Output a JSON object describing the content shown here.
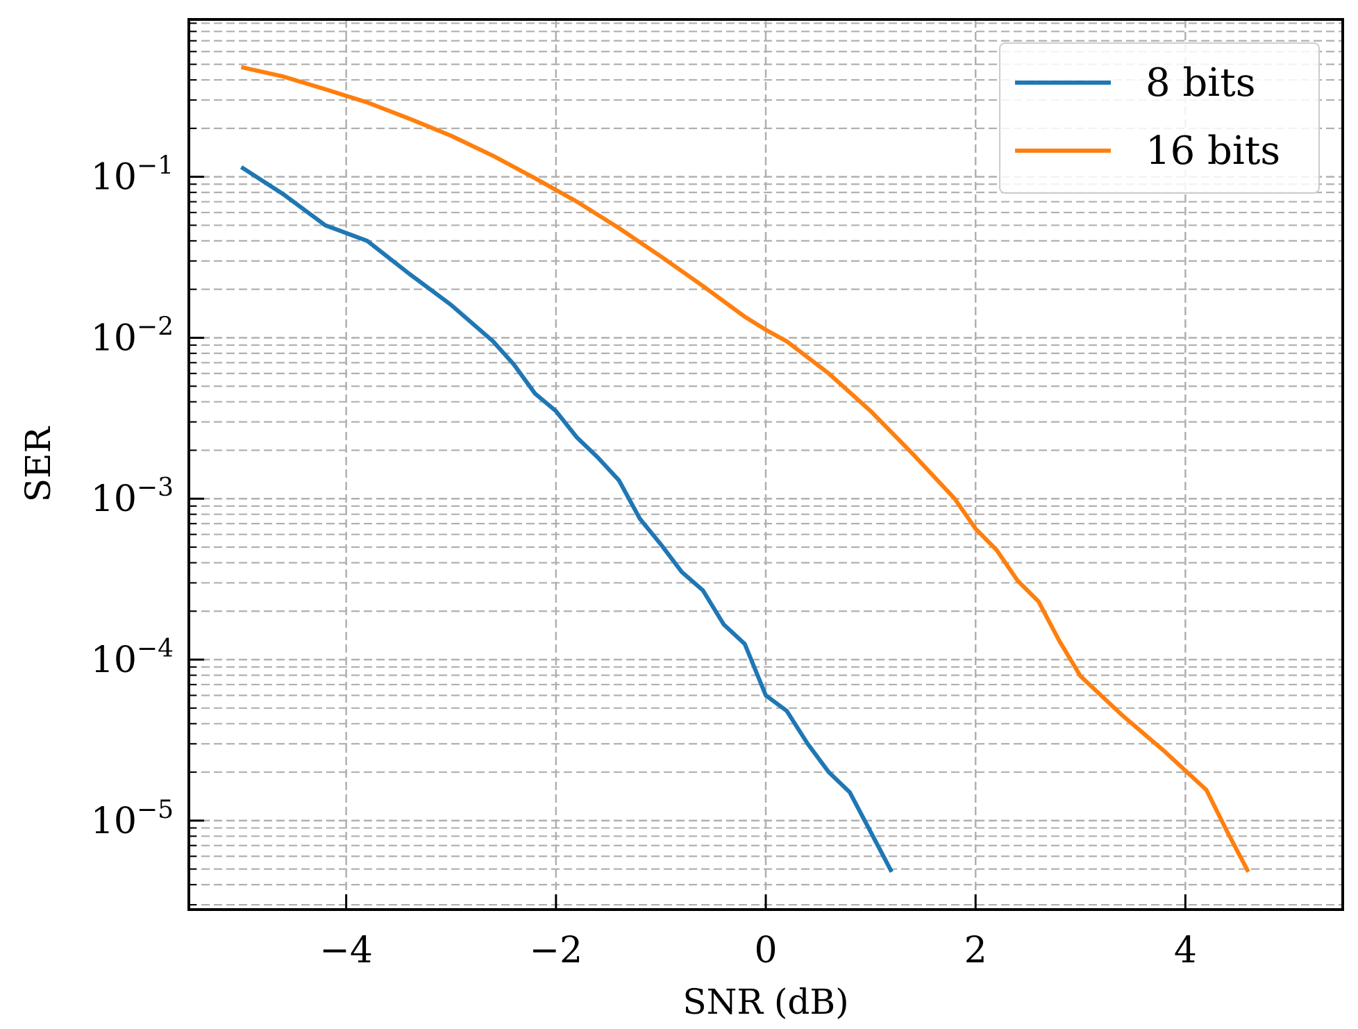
{
  "chart_data": {
    "type": "line",
    "title": "",
    "xlabel": "SNR (dB)",
    "ylabel": "SER",
    "xlim": [
      -5.5,
      5.5
    ],
    "ylim": [
      2.8e-06,
      0.95
    ],
    "yscale": "log",
    "grid": {
      "major": true,
      "minor": true,
      "style": "dashed"
    },
    "legend_position": "top-right",
    "x_ticks": [
      {
        "value": -4,
        "label": "−4"
      },
      {
        "value": -2,
        "label": "−2"
      },
      {
        "value": 0,
        "label": "0"
      },
      {
        "value": 2,
        "label": "2"
      },
      {
        "value": 4,
        "label": "4"
      }
    ],
    "y_ticks": [
      {
        "value": 0.1,
        "base": "10",
        "exp": "−1"
      },
      {
        "value": 0.01,
        "base": "10",
        "exp": "−2"
      },
      {
        "value": 0.001,
        "base": "10",
        "exp": "−3"
      },
      {
        "value": 0.0001,
        "base": "10",
        "exp": "−4"
      },
      {
        "value": 1e-05,
        "base": "10",
        "exp": "−5"
      }
    ],
    "series": [
      {
        "name": "8 bits",
        "color": "#1f77b4",
        "x": [
          -5.0,
          -4.6,
          -4.2,
          -3.8,
          -3.4,
          -3.0,
          -2.6,
          -2.4,
          -2.2,
          -2.0,
          -1.8,
          -1.6,
          -1.4,
          -1.2,
          -1.0,
          -0.8,
          -0.6,
          -0.4,
          -0.2,
          0.0,
          0.2,
          0.4,
          0.6,
          0.8,
          1.0,
          1.2
        ],
        "y": [
          0.115,
          0.078,
          0.05,
          0.04,
          0.025,
          0.016,
          0.0095,
          0.0068,
          0.0045,
          0.0035,
          0.0024,
          0.0018,
          0.0013,
          0.00075,
          0.00052,
          0.00035,
          0.00027,
          0.000165,
          0.000125,
          6e-05,
          4.8e-05,
          3e-05,
          2e-05,
          1.5e-05,
          8.5e-06,
          4.8e-06
        ]
      },
      {
        "name": "16 bits",
        "color": "#ff7f0e",
        "x": [
          -5.0,
          -4.6,
          -4.2,
          -3.8,
          -3.4,
          -3.0,
          -2.6,
          -2.2,
          -1.8,
          -1.4,
          -1.0,
          -0.6,
          -0.2,
          0.0,
          0.2,
          0.6,
          1.0,
          1.4,
          1.8,
          2.0,
          2.2,
          2.4,
          2.6,
          2.8,
          3.0,
          3.4,
          3.8,
          4.2,
          4.4,
          4.6
        ],
        "y": [
          0.48,
          0.42,
          0.35,
          0.29,
          0.23,
          0.18,
          0.135,
          0.098,
          0.07,
          0.048,
          0.032,
          0.021,
          0.0135,
          0.0112,
          0.0095,
          0.006,
          0.0035,
          0.0019,
          0.001,
          0.00065,
          0.00048,
          0.00031,
          0.00023,
          0.00013,
          7.9e-05,
          4.5e-05,
          2.7e-05,
          1.55e-05,
          8.5e-06,
          4.8e-06
        ]
      }
    ]
  }
}
